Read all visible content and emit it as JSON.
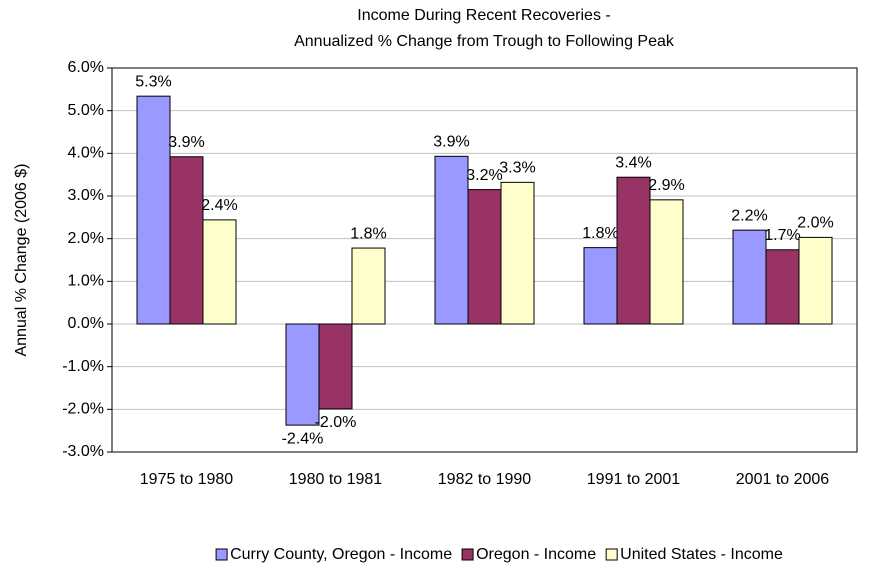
{
  "chart_data": {
    "type": "bar",
    "title": "Income During Recent Recoveries -",
    "subtitle": "Annualized % Change from Trough to Following Peak",
    "y_label": "Annual % Change (2006 $)",
    "categories": [
      "1975 to 1980",
      "1980 to 1981",
      "1982 to 1990",
      "1991 to 2001",
      "2001 to 2006"
    ],
    "series": [
      {
        "name": "Curry County, Oregon - Income",
        "color": "#9999ff",
        "values": [
          5.34,
          -2.37,
          3.93,
          1.79,
          2.2
        ],
        "value_labels": [
          "5.3%",
          "-2.4%",
          "3.9%",
          "1.8%",
          "2.2%"
        ]
      },
      {
        "name": "Oregon - Income",
        "color": "#993366",
        "values": [
          3.92,
          -1.99,
          3.15,
          3.44,
          1.74
        ],
        "value_labels": [
          "3.9%",
          "-2.0%",
          "3.2%",
          "3.4%",
          "1.7%"
        ]
      },
      {
        "name": "United States - Income",
        "color": "#ffffcc",
        "values": [
          2.44,
          1.78,
          3.32,
          2.91,
          2.03
        ],
        "value_labels": [
          "2.4%",
          "1.8%",
          "3.3%",
          "2.9%",
          "2.0%"
        ]
      }
    ],
    "ylim": [
      -3,
      6
    ],
    "yticks": [
      {
        "value": -3,
        "label": "-3.0%"
      },
      {
        "value": -2,
        "label": "-2.0%"
      },
      {
        "value": -1,
        "label": "-1.0%"
      },
      {
        "value": 0,
        "label": "0.0%"
      },
      {
        "value": 1,
        "label": "1.0%"
      },
      {
        "value": 2,
        "label": "2.0%"
      },
      {
        "value": 3,
        "label": "3.0%"
      },
      {
        "value": 4,
        "label": "4.0%"
      },
      {
        "value": 5,
        "label": "5.0%"
      },
      {
        "value": 6,
        "label": "6.0%"
      }
    ],
    "grid": true,
    "legend": "bottom"
  }
}
